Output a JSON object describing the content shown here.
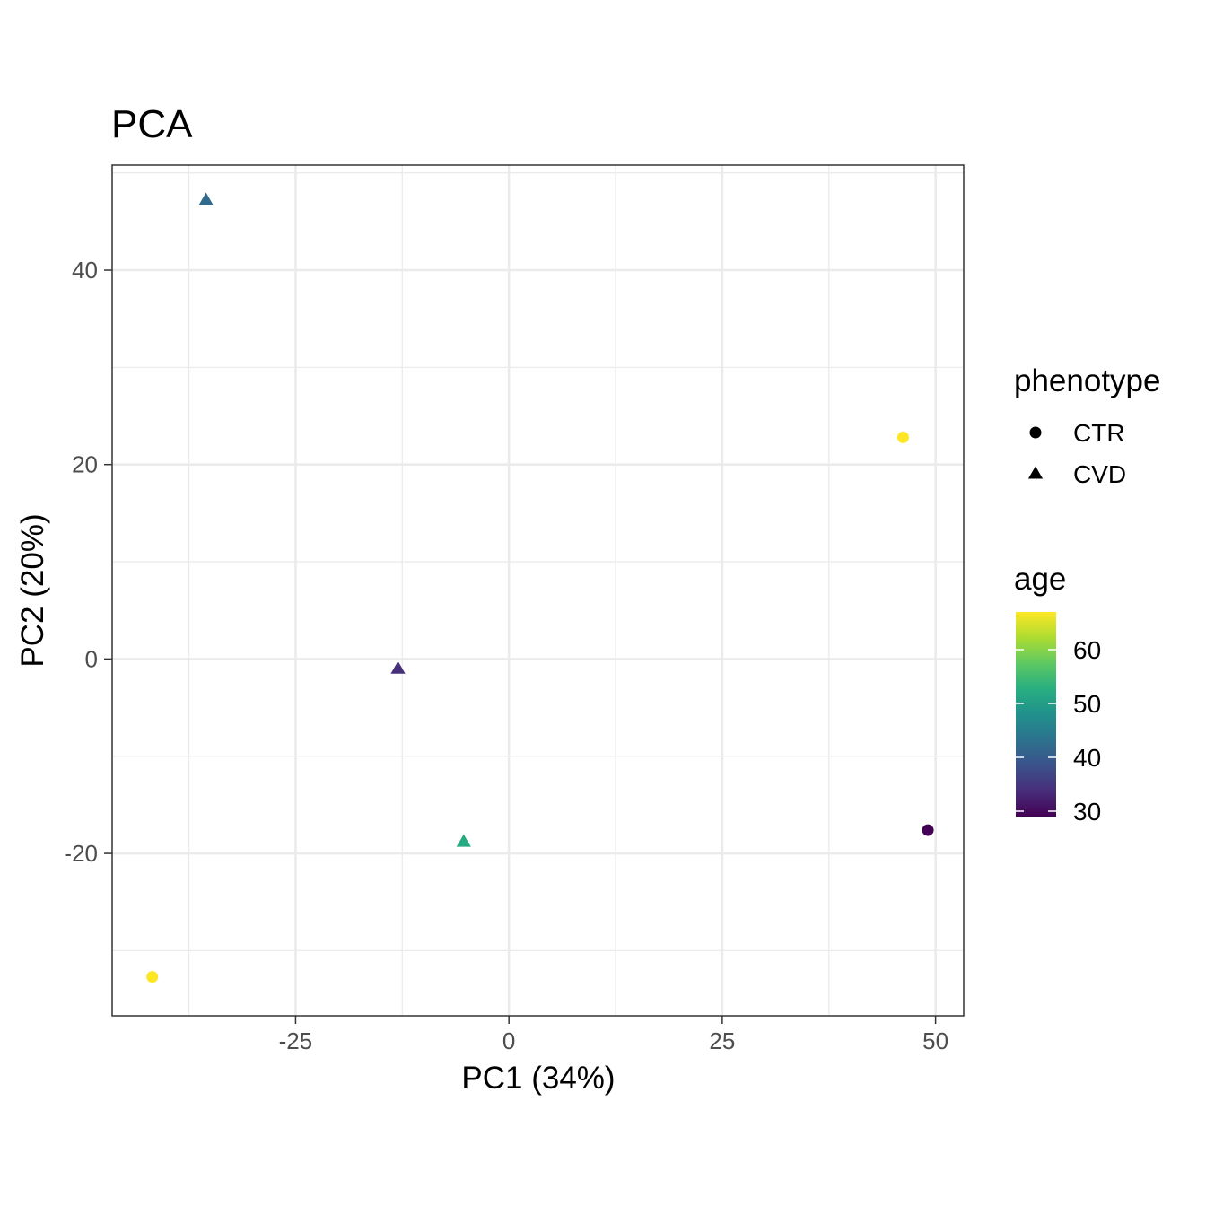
{
  "chart_data": {
    "type": "scatter",
    "title": "PCA",
    "xlabel": "PC1 (34%)",
    "ylabel": "PC2 (20%)",
    "xlim": [
      -46.5,
      53.3
    ],
    "ylim": [
      -36.7,
      50.8
    ],
    "x_ticks": [
      -25,
      0,
      25,
      50
    ],
    "x_tick_labels": [
      "-25",
      "0",
      "25",
      "50"
    ],
    "y_ticks": [
      -20,
      0,
      20,
      40
    ],
    "y_tick_labels": [
      "-20",
      "0",
      "20",
      "40"
    ],
    "grid": true,
    "points": [
      {
        "pc1": -35.5,
        "pc2": 47.2,
        "phenotype": "CVD",
        "age": 42
      },
      {
        "pc1": -13.0,
        "pc2": -1.0,
        "phenotype": "CVD",
        "age": 34
      },
      {
        "pc1": -5.3,
        "pc2": -18.8,
        "phenotype": "CVD",
        "age": 52
      },
      {
        "pc1": 46.2,
        "pc2": 22.8,
        "phenotype": "CTR",
        "age": 67
      },
      {
        "pc1": 49.1,
        "pc2": -17.6,
        "phenotype": "CTR",
        "age": 29
      },
      {
        "pc1": -41.8,
        "pc2": -32.7,
        "phenotype": "CTR",
        "age": 67
      }
    ],
    "legend": {
      "placement": "right",
      "shape_title": "phenotype",
      "shape_entries": [
        {
          "label": "CTR",
          "shape": "circle"
        },
        {
          "label": "CVD",
          "shape": "triangle"
        }
      ],
      "color_title": "age",
      "color_scale": "viridis",
      "color_range": [
        29,
        67
      ],
      "color_ticks": [
        30,
        40,
        50,
        60
      ],
      "color_tick_labels": [
        "30",
        "40",
        "50",
        "60"
      ]
    }
  }
}
